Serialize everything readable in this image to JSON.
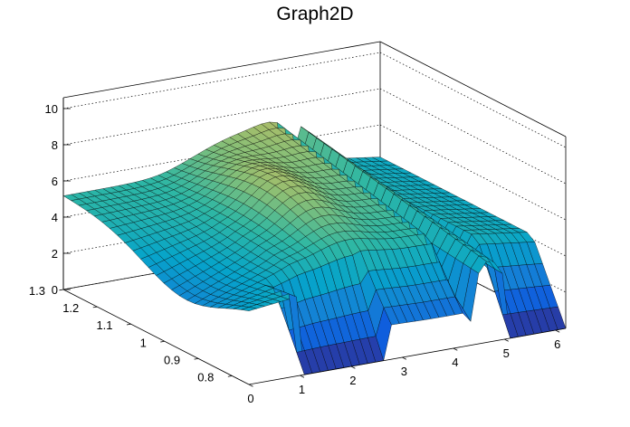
{
  "chart_data": {
    "type": "surface",
    "title": "Graph2D",
    "xlabel": "",
    "ylabel": "",
    "zlabel": "",
    "xlim": [
      0,
      6.2
    ],
    "ylim": [
      0.75,
      1.3
    ],
    "zlim": [
      0,
      10.6
    ],
    "x_ticks": [
      "0",
      "1",
      "2",
      "3",
      "4",
      "5",
      "6"
    ],
    "y_ticks": [
      "0.8",
      "0.9",
      "1",
      "1.1",
      "1.2",
      "1.3"
    ],
    "z_ticks": [
      "0",
      "2",
      "4",
      "6",
      "8",
      "10"
    ],
    "grid": true,
    "colormap": [
      "#352a87",
      "#0f5cdd",
      "#1481d6",
      "#06a4ca",
      "#2eb7a4",
      "#87bf77",
      "#d1bb59",
      "#fec832",
      "#f9fb0e"
    ],
    "shape_description_rows": [
      {
        "y": 1.3,
        "z_profile": [
          [
            0,
            4.8
          ],
          [
            2.5,
            5.0
          ],
          [
            3.5,
            5.6
          ],
          [
            4.5,
            5.0
          ],
          [
            6.2,
            4.8
          ]
        ]
      },
      {
        "y": 0.75,
        "z_profile": [
          [
            0,
            0
          ],
          [
            2.6,
            0
          ],
          [
            4.4,
            0
          ],
          [
            6.2,
            0
          ]
        ]
      }
    ]
  }
}
